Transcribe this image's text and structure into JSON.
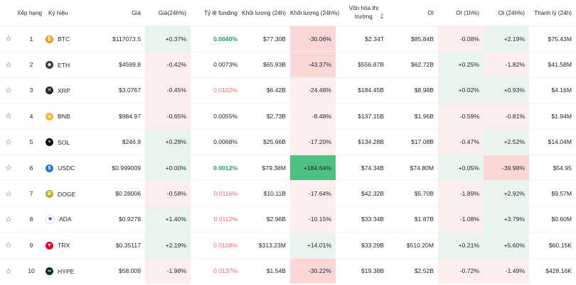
{
  "headers": {
    "rank": "Xếp hạng",
    "symbol": "Ký hiệu",
    "price": "Giá",
    "price_change": "Giá(24h%)",
    "funding": "Tỷ lệ funding",
    "volume": "Khối lượng (24h)",
    "volume_change": "Khối lượng (24h%)",
    "mcap_line1": "Vốn hóa thị",
    "mcap_line2": "trường",
    "oi": "OI",
    "oi_1h": "OI (1h%)",
    "oi_24h": "OI (24h%)",
    "liq": "Thanh lý (24h)"
  },
  "colors": {
    "positive": "#1aa360",
    "negative": "#ea6b6b"
  },
  "rows": [
    {
      "rank": "1",
      "symbol": "BTC",
      "icon": "btc-icon",
      "icon_color": "#f7931a",
      "icon_glyph": "₿",
      "price": "$117073.5",
      "chg": "+0.37%",
      "funding": "0.0040%",
      "vol": "$77.30B",
      "vol_chg": "-30.06%",
      "mcap": "$2.34T",
      "oi": "$85.84B",
      "oi1h": "-0.08%",
      "oi24h": "+2.19%",
      "liq": "$75.43M"
    },
    {
      "rank": "2",
      "symbol": "ETH",
      "icon": "eth-icon",
      "icon_color": "#3c3c3d",
      "icon_glyph": "◆",
      "price": "$4599.8",
      "chg": "-0.42%",
      "funding": "0.0073%",
      "vol": "$65.93B",
      "vol_chg": "-43.37%",
      "mcap": "$556.87B",
      "oi": "$62.72B",
      "oi1h": "+0.25%",
      "oi24h": "-1.82%",
      "liq": "$41.58M"
    },
    {
      "rank": "3",
      "symbol": "XRP",
      "icon": "xrp-icon",
      "icon_color": "#23292f",
      "icon_glyph": "✕",
      "price": "$3.0767",
      "chg": "-0.45%",
      "funding": "0.0102%",
      "vol": "$6.42B",
      "vol_chg": "-24.48%",
      "mcap": "$184.45B",
      "oi": "$8.98B",
      "oi1h": "+0.02%",
      "oi24h": "+0.93%",
      "liq": "$4.16M"
    },
    {
      "rank": "4",
      "symbol": "BNB",
      "icon": "bnb-icon",
      "icon_color": "#f3ba2f",
      "icon_glyph": "◈",
      "price": "$984.97",
      "chg": "-0.65%",
      "funding": "0.0055%",
      "vol": "$2.73B",
      "vol_chg": "-8.48%",
      "mcap": "$137.15B",
      "oi": "$1.96B",
      "oi1h": "-0.59%",
      "oi24h": "-0.81%",
      "liq": "$1.94M"
    },
    {
      "rank": "5",
      "symbol": "SOL",
      "icon": "sol-icon",
      "icon_color": "#111111",
      "icon_glyph": "≡",
      "price": "$246.9",
      "chg": "+0.28%",
      "funding": "0.0068%",
      "vol": "$25.66B",
      "vol_chg": "-17.20%",
      "mcap": "$134.28B",
      "oi": "$17.08B",
      "oi1h": "-0.47%",
      "oi24h": "+2.52%",
      "liq": "$14.04M"
    },
    {
      "rank": "6",
      "symbol": "USDC",
      "icon": "usdc-icon",
      "icon_color": "#2775ca",
      "icon_glyph": "$",
      "price": "$0.999009",
      "chg": "+0.00%",
      "funding": "0.0012%",
      "vol": "$79.38M",
      "vol_chg": "+184.64%",
      "mcap": "$74.34B",
      "oi": "$74.80M",
      "oi1h": "+0.05%",
      "oi24h": "-39.98%",
      "liq": "$54.95"
    },
    {
      "rank": "7",
      "symbol": "DOGE",
      "icon": "doge-icon",
      "icon_color": "#c2a633",
      "icon_glyph": "Ð",
      "price": "$0.28006",
      "chg": "-0.58%",
      "funding": "0.0116%",
      "vol": "$10.11B",
      "vol_chg": "-17.64%",
      "mcap": "$42.32B",
      "oi": "$5.70B",
      "oi1h": "-1.89%",
      "oi24h": "+2.92%",
      "liq": "$9.57M"
    },
    {
      "rank": "8",
      "symbol": "ADA",
      "icon": "ada-icon",
      "icon_color": "#ffffff",
      "icon_glyph": "✺",
      "price": "$0.9278",
      "chg": "+1.40%",
      "funding": "0.0112%",
      "vol": "$2.96B",
      "vol_chg": "-10.15%",
      "mcap": "$33.34B",
      "oi": "$1.87B",
      "oi1h": "-1.08%",
      "oi24h": "+3.79%",
      "liq": "$0.60M"
    },
    {
      "rank": "9",
      "symbol": "TRX",
      "icon": "trx-icon",
      "icon_color": "#eb0029",
      "icon_glyph": "▼",
      "price": "$0.35117",
      "chg": "+2.19%",
      "funding": "0.0108%",
      "vol": "$313.23M",
      "vol_chg": "+14.01%",
      "mcap": "$33.29B",
      "oi": "$510.20M",
      "oi1h": "+0.21%",
      "oi24h": "+5.60%",
      "liq": "$60.15K"
    },
    {
      "rank": "10",
      "symbol": "HYPE",
      "icon": "hype-icon",
      "icon_color": "#0b2f2a",
      "icon_glyph": "∞",
      "price": "$58.009",
      "chg": "-1.98%",
      "funding": "0.0137%",
      "vol": "$1.54B",
      "vol_chg": "-30.22%",
      "mcap": "$19.38B",
      "oi": "$2.52B",
      "oi1h": "-0.72%",
      "oi24h": "-1.49%",
      "liq": "$428.16K"
    }
  ]
}
